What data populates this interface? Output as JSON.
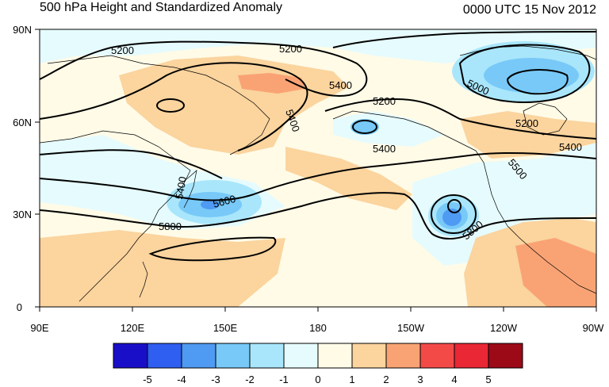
{
  "title": "500 hPa Height and Standardized Anomaly",
  "valid_time": "0000 UTC 15 Nov 2012",
  "x_ticks": [
    "90E",
    "120E",
    "150E",
    "180",
    "150W",
    "120W",
    "90W"
  ],
  "y_ticks": [
    "0",
    "30N",
    "60N",
    "90N"
  ],
  "contour_labels": [
    "5200",
    "5200",
    "5200",
    "5200",
    "5400",
    "5400",
    "5400",
    "5500",
    "5600",
    "5800",
    "5800",
    "5000",
    "5400",
    "5400"
  ],
  "colorbar": {
    "labels": [
      "-5",
      "-4",
      "-3",
      "-2",
      "-1",
      "0",
      "1",
      "2",
      "3",
      "4",
      "5"
    ],
    "colors": [
      "#1a0fc9",
      "#2f5ff0",
      "#4f9af2",
      "#78c9f8",
      "#a9e6fb",
      "#e6fbfd",
      "#fffbe7",
      "#fbd49e",
      "#f9a374",
      "#f34a48",
      "#ea2734",
      "#9c0a18"
    ]
  }
}
